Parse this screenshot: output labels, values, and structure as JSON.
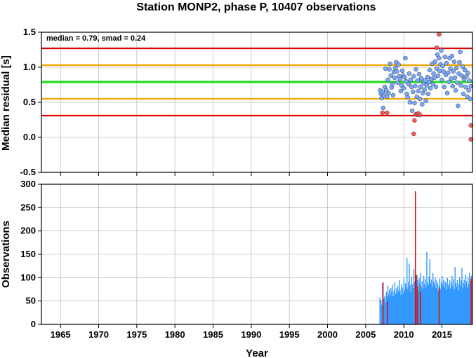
{
  "title": "Station MONP2, phase P, 10407 observations",
  "colors": {
    "threshold_outer": "#dd0000",
    "threshold_inner": "#f5a500",
    "median_line": "#22dd22",
    "point_normal": "#77aaff",
    "point_outlier": "#ff5555",
    "bar_normal": "#3399ff",
    "bar_outlier": "#dd1111",
    "grid": "#aaaaaa"
  },
  "chart_data": [
    {
      "type": "scatter",
      "name": "residuals",
      "xlabel": "",
      "ylabel": "Median residual [s]",
      "xlim": [
        1962.5,
        2019
      ],
      "ylim": [
        -0.5,
        1.5
      ],
      "y_ticks": [
        -0.5,
        0.0,
        0.5,
        1.0,
        1.5
      ],
      "y_tick_labels": [
        "-0.5",
        "0.0",
        "0.5",
        "1.0",
        "1.5"
      ],
      "grid": true,
      "annotation": "median = 0.79, smad = 0.24",
      "median": 0.79,
      "h_lines": [
        {
          "y": 1.27,
          "role": "outer"
        },
        {
          "y": 1.03,
          "role": "inner"
        },
        {
          "y": 0.79,
          "role": "median"
        },
        {
          "y": 0.55,
          "role": "inner"
        },
        {
          "y": 0.31,
          "role": "outer"
        }
      ],
      "points": [
        [
          2006.9,
          0.67
        ],
        [
          2007.0,
          0.62
        ],
        [
          2007.1,
          0.56
        ],
        [
          2007.2,
          0.65
        ],
        [
          2007.3,
          0.42
        ],
        [
          2007.4,
          0.6
        ],
        [
          2007.5,
          0.72
        ],
        [
          2007.6,
          0.98
        ],
        [
          2007.7,
          0.67
        ],
        [
          2007.8,
          0.58
        ],
        [
          2007.9,
          0.82
        ],
        [
          2008.0,
          0.63
        ],
        [
          2008.1,
          0.97
        ],
        [
          2008.2,
          1.05
        ],
        [
          2008.3,
          0.88
        ],
        [
          2008.4,
          0.71
        ],
        [
          2008.5,
          0.76
        ],
        [
          2008.6,
          0.6
        ],
        [
          2008.7,
          0.93
        ],
        [
          2008.8,
          0.85
        ],
        [
          2008.9,
          0.99
        ],
        [
          2009.0,
          1.07
        ],
        [
          2009.1,
          0.94
        ],
        [
          2009.2,
          0.78
        ],
        [
          2009.3,
          1.04
        ],
        [
          2009.4,
          0.87
        ],
        [
          2009.5,
          0.83
        ],
        [
          2009.6,
          0.66
        ],
        [
          2009.7,
          0.74
        ],
        [
          2009.8,
          0.95
        ],
        [
          2009.9,
          0.88
        ],
        [
          2010.0,
          0.7
        ],
        [
          2010.1,
          0.86
        ],
        [
          2010.2,
          1.13
        ],
        [
          2010.3,
          0.8
        ],
        [
          2010.4,
          0.62
        ],
        [
          2010.5,
          0.57
        ],
        [
          2010.6,
          0.76
        ],
        [
          2010.7,
          0.91
        ],
        [
          2010.8,
          0.5
        ],
        [
          2010.9,
          0.82
        ],
        [
          2011.0,
          0.72
        ],
        [
          2011.1,
          0.38
        ],
        [
          2011.2,
          0.65
        ],
        [
          2011.3,
          0.87
        ],
        [
          2011.4,
          0.49
        ],
        [
          2011.5,
          0.73
        ],
        [
          2011.6,
          0.97
        ],
        [
          2011.7,
          0.58
        ],
        [
          2011.8,
          0.81
        ],
        [
          2011.9,
          0.66
        ],
        [
          2012.0,
          0.9
        ],
        [
          2012.1,
          0.55
        ],
        [
          2012.2,
          0.72
        ],
        [
          2012.3,
          0.84
        ],
        [
          2012.4,
          0.47
        ],
        [
          2012.5,
          0.63
        ],
        [
          2012.6,
          0.77
        ],
        [
          2012.7,
          0.68
        ],
        [
          2012.8,
          0.81
        ],
        [
          2012.9,
          0.52
        ],
        [
          2013.0,
          0.74
        ],
        [
          2013.1,
          0.86
        ],
        [
          2013.2,
          0.62
        ],
        [
          2013.3,
          0.79
        ],
        [
          2013.4,
          0.96
        ],
        [
          2013.5,
          0.7
        ],
        [
          2013.6,
          0.83
        ],
        [
          2013.7,
          1.05
        ],
        [
          2013.8,
          0.76
        ],
        [
          2013.9,
          0.91
        ],
        [
          2014.0,
          0.85
        ],
        [
          2014.1,
          1.08
        ],
        [
          2014.2,
          0.72
        ],
        [
          2014.3,
          0.98
        ],
        [
          2014.4,
          1.18
        ],
        [
          2014.5,
          0.88
        ],
        [
          2014.6,
          1.13
        ],
        [
          2014.7,
          0.95
        ],
        [
          2014.8,
          1.04
        ],
        [
          2014.9,
          1.24
        ],
        [
          2015.0,
          0.82
        ],
        [
          2015.1,
          1.02
        ],
        [
          2015.2,
          0.94
        ],
        [
          2015.3,
          0.72
        ],
        [
          2015.4,
          1.15
        ],
        [
          2015.5,
          0.89
        ],
        [
          2015.6,
          1.06
        ],
        [
          2015.7,
          0.63
        ],
        [
          2015.8,
          0.92
        ],
        [
          2015.9,
          0.79
        ],
        [
          2016.0,
          1.13
        ],
        [
          2016.1,
          0.98
        ],
        [
          2016.2,
          0.84
        ],
        [
          2016.3,
          1.16
        ],
        [
          2016.4,
          0.73
        ],
        [
          2016.5,
          0.94
        ],
        [
          2016.6,
          1.08
        ],
        [
          2016.7,
          0.85
        ],
        [
          2016.8,
          0.67
        ],
        [
          2016.9,
          0.99
        ],
        [
          2017.0,
          0.78
        ],
        [
          2017.1,
          0.45
        ],
        [
          2017.2,
          0.91
        ],
        [
          2017.3,
          1.07
        ],
        [
          2017.4,
          1.22
        ],
        [
          2017.5,
          0.74
        ],
        [
          2017.6,
          0.88
        ],
        [
          2017.7,
          1.01
        ],
        [
          2017.8,
          0.62
        ],
        [
          2017.9,
          0.83
        ],
        [
          2018.0,
          0.96
        ],
        [
          2018.1,
          0.72
        ],
        [
          2018.2,
          0.87
        ],
        [
          2018.3,
          0.58
        ],
        [
          2018.4,
          0.92
        ],
        [
          2018.5,
          0.67
        ],
        [
          2018.6,
          0.81
        ],
        [
          2018.7,
          0.55
        ],
        [
          2018.8,
          0.73
        ]
      ],
      "outlier_points": [
        [
          2007.2,
          0.35
        ],
        [
          2007.8,
          0.35
        ],
        [
          2011.3,
          0.05
        ],
        [
          2011.4,
          0.24
        ],
        [
          2011.6,
          0.33
        ],
        [
          2011.7,
          0.32
        ],
        [
          2011.9,
          0.34
        ],
        [
          2012.1,
          0.32
        ],
        [
          2014.6,
          1.47
        ],
        [
          2014.3,
          1.28
        ],
        [
          2018.8,
          0.17
        ],
        [
          2018.8,
          -0.03
        ]
      ]
    },
    {
      "type": "bar",
      "name": "observations",
      "xlabel": "Year",
      "ylabel": "Observations",
      "xlim": [
        1962.5,
        2019
      ],
      "ylim": [
        0,
        300
      ],
      "x_ticks": [
        1965,
        1970,
        1975,
        1980,
        1985,
        1990,
        1995,
        2000,
        2005,
        2010,
        2015
      ],
      "x_tick_labels": [
        "1965",
        "1970",
        "1975",
        "1980",
        "1985",
        "1990",
        "1995",
        "2000",
        "2005",
        "2010",
        "2015"
      ],
      "y_ticks": [
        0,
        50,
        100,
        150,
        200,
        250,
        300
      ],
      "y_tick_labels": [
        "0",
        "50",
        "100",
        "150",
        "200",
        "250",
        "300"
      ],
      "grid": true,
      "bars": [
        [
          2006.8,
          58
        ],
        [
          2006.95,
          52
        ],
        [
          2007.05,
          42
        ],
        [
          2007.15,
          88
        ],
        [
          2007.25,
          48
        ],
        [
          2007.35,
          55
        ],
        [
          2007.45,
          61
        ],
        [
          2007.55,
          47
        ],
        [
          2007.65,
          70
        ],
        [
          2007.75,
          59
        ],
        [
          2007.85,
          83
        ],
        [
          2007.95,
          66
        ],
        [
          2008.05,
          74
        ],
        [
          2008.15,
          62
        ],
        [
          2008.25,
          78
        ],
        [
          2008.35,
          69
        ],
        [
          2008.45,
          85
        ],
        [
          2008.55,
          60
        ],
        [
          2008.65,
          72
        ],
        [
          2008.75,
          90
        ],
        [
          2008.85,
          65
        ],
        [
          2008.95,
          77
        ],
        [
          2009.05,
          68
        ],
        [
          2009.15,
          82
        ],
        [
          2009.25,
          71
        ],
        [
          2009.35,
          95
        ],
        [
          2009.45,
          74
        ],
        [
          2009.55,
          63
        ],
        [
          2009.65,
          86
        ],
        [
          2009.75,
          79
        ],
        [
          2009.85,
          67
        ],
        [
          2009.95,
          98
        ],
        [
          2010.05,
          73
        ],
        [
          2010.15,
          88
        ],
        [
          2010.25,
          80
        ],
        [
          2010.35,
          142
        ],
        [
          2010.45,
          76
        ],
        [
          2010.55,
          91
        ],
        [
          2010.65,
          130
        ],
        [
          2010.75,
          84
        ],
        [
          2010.85,
          69
        ],
        [
          2010.95,
          102
        ],
        [
          2011.05,
          87
        ],
        [
          2011.15,
          78
        ],
        [
          2011.25,
          118
        ],
        [
          2011.35,
          92
        ],
        [
          2011.45,
          125
        ],
        [
          2011.55,
          83
        ],
        [
          2011.65,
          106
        ],
        [
          2011.75,
          95
        ],
        [
          2011.85,
          72
        ],
        [
          2011.95,
          99
        ],
        [
          2012.05,
          88
        ],
        [
          2012.15,
          110
        ],
        [
          2012.25,
          81
        ],
        [
          2012.35,
          93
        ],
        [
          2012.45,
          76
        ],
        [
          2012.55,
          104
        ],
        [
          2012.65,
          86
        ],
        [
          2012.75,
          97
        ],
        [
          2012.85,
          79
        ],
        [
          2012.95,
          155
        ],
        [
          2013.05,
          90
        ],
        [
          2013.15,
          84
        ],
        [
          2013.25,
          102
        ],
        [
          2013.35,
          140
        ],
        [
          2013.45,
          88
        ],
        [
          2013.55,
          96
        ],
        [
          2013.65,
          80
        ],
        [
          2013.75,
          110
        ],
        [
          2013.85,
          92
        ],
        [
          2013.95,
          85
        ],
        [
          2014.05,
          100
        ],
        [
          2014.15,
          78
        ],
        [
          2014.25,
          94
        ],
        [
          2014.35,
          88
        ],
        [
          2014.45,
          72
        ],
        [
          2014.55,
          83
        ],
        [
          2014.65,
          98
        ],
        [
          2014.75,
          76
        ],
        [
          2014.85,
          90
        ],
        [
          2014.95,
          104
        ],
        [
          2015.05,
          85
        ],
        [
          2015.15,
          96
        ],
        [
          2015.25,
          79
        ],
        [
          2015.35,
          92
        ],
        [
          2015.45,
          88
        ],
        [
          2015.55,
          74
        ],
        [
          2015.65,
          99
        ],
        [
          2015.75,
          86
        ],
        [
          2015.85,
          81
        ],
        [
          2015.95,
          95
        ],
        [
          2016.05,
          77
        ],
        [
          2016.15,
          90
        ],
        [
          2016.25,
          104
        ],
        [
          2016.35,
          83
        ],
        [
          2016.45,
          97
        ],
        [
          2016.55,
          75
        ],
        [
          2016.65,
          123
        ],
        [
          2016.75,
          88
        ],
        [
          2016.85,
          80
        ],
        [
          2016.95,
          95
        ],
        [
          2017.05,
          86
        ],
        [
          2017.15,
          73
        ],
        [
          2017.25,
          101
        ],
        [
          2017.35,
          82
        ],
        [
          2017.45,
          94
        ],
        [
          2017.55,
          121
        ],
        [
          2017.65,
          78
        ],
        [
          2017.75,
          89
        ],
        [
          2017.85,
          96
        ],
        [
          2017.95,
          84
        ],
        [
          2018.05,
          107
        ],
        [
          2018.15,
          92
        ],
        [
          2018.25,
          79
        ],
        [
          2018.35,
          100
        ],
        [
          2018.45,
          86
        ],
        [
          2018.55,
          110
        ],
        [
          2018.65,
          93
        ],
        [
          2018.8,
          104
        ]
      ],
      "outlier_bars": [
        [
          2007.2,
          90
        ],
        [
          2007.8,
          50
        ],
        [
          2011.45,
          285
        ],
        [
          2011.55,
          105
        ],
        [
          2011.75,
          82
        ],
        [
          2012.1,
          70
        ],
        [
          2014.55,
          78
        ],
        [
          2018.75,
          98
        ]
      ]
    }
  ]
}
